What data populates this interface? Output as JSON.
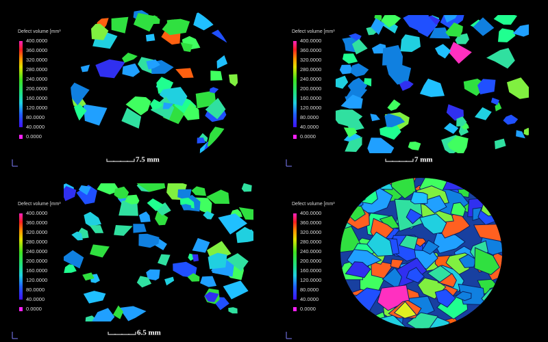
{
  "panels": [
    {
      "legend_title": "Defect volume [mm³",
      "legend_labels": [
        "400.0000",
        "360.0000",
        "320.0000",
        "280.0000",
        "240.0000",
        "200.0000",
        "160.0000",
        "120.0000",
        "80.0000",
        "40.0000",
        "0.0000"
      ],
      "scale_label": "7.5 mm"
    },
    {
      "legend_title": "Defect volume [mm³",
      "legend_labels": [
        "400.0000",
        "360.0000",
        "320.0000",
        "280.0000",
        "240.0000",
        "200.0000",
        "160.0000",
        "120.0000",
        "80.0000",
        "40.0000",
        "0.0000"
      ],
      "scale_label": "7 mm"
    },
    {
      "legend_title": "Defect volume [mm³",
      "legend_labels": [
        "400.0000",
        "360.0000",
        "320.0000",
        "280.0000",
        "240.0000",
        "200.0000",
        "160.0000",
        "120.0000",
        "80.0000",
        "40.0000",
        "0.0000"
      ],
      "scale_label": "6.5 mm"
    },
    {
      "legend_title": "Defect volume [mm³",
      "legend_labels": [
        "400.0000",
        "360.0000",
        "320.0000",
        "280.0000",
        "240.0000",
        "200.0000",
        "160.0000",
        "120.0000",
        "80.0000",
        "40.0000",
        "0.0000"
      ]
    }
  ]
}
